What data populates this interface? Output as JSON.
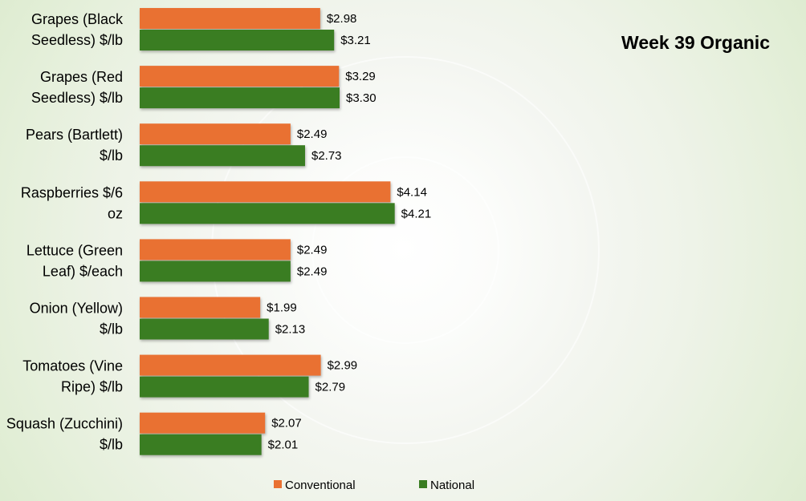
{
  "chart_data": {
    "type": "bar",
    "orientation": "horizontal",
    "title": "Week 39 Organic",
    "categories": [
      "Grapes (Black Seedless) $/lb",
      "Grapes (Red Seedless) $/lb",
      "Pears (Bartlett) $/lb",
      "Raspberries $/6 oz",
      "Lettuce (Green Leaf) $/each",
      "Onion (Yellow) $/lb",
      "Tomatoes (Vine Ripe) $/lb",
      "Squash (Zucchini) $/lb"
    ],
    "category_lines": [
      [
        "Grapes (Black",
        "Seedless) $/lb"
      ],
      [
        "Grapes (Red",
        "Seedless) $/lb"
      ],
      [
        "Pears (Bartlett)",
        "$/lb"
      ],
      [
        "Raspberries $/6",
        "oz"
      ],
      [
        "Lettuce (Green",
        "Leaf) $/each"
      ],
      [
        "Onion (Yellow)",
        "$/lb"
      ],
      [
        "Tomatoes (Vine",
        "Ripe) $/lb"
      ],
      [
        "Squash (Zucchini)",
        "$/lb"
      ]
    ],
    "series": [
      {
        "name": "Conventional",
        "color": "#E97132",
        "values": [
          2.98,
          3.29,
          2.49,
          4.14,
          2.49,
          1.99,
          2.99,
          2.07
        ],
        "labels": [
          "$2.98",
          "$3.29",
          "$2.49",
          "$4.14",
          "$2.49",
          "$1.99",
          "$2.99",
          "$2.07"
        ]
      },
      {
        "name": "National",
        "color": "#3A7D22",
        "values": [
          3.21,
          3.3,
          2.73,
          4.21,
          2.49,
          2.13,
          2.79,
          2.01
        ],
        "labels": [
          "$3.21",
          "$3.30",
          "$2.73",
          "$4.21",
          "$2.49",
          "$2.13",
          "$2.79",
          "$2.01"
        ]
      }
    ],
    "xlim": [
      0,
      11
    ],
    "grid": false,
    "legend_position": "bottom"
  }
}
